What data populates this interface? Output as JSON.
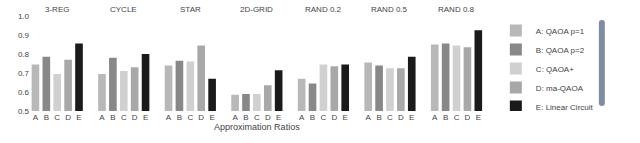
{
  "chart_data": [
    {
      "type": "bar",
      "title": "3-REG",
      "categories": [
        "A",
        "B",
        "C",
        "D",
        "E"
      ],
      "series": [
        {
          "name": "A: QAOA p=1",
          "color": "#b8b8b8",
          "values": [
            0.745,
            null,
            null,
            null,
            null
          ]
        },
        {
          "name": "B: QAOA p=2",
          "color": "#888888",
          "values": [
            null,
            0.785,
            null,
            null,
            null
          ]
        },
        {
          "name": "C: QAOA+",
          "color": "#d0d0d0",
          "values": [
            null,
            null,
            0.695,
            null,
            null
          ]
        },
        {
          "name": "D: ma-QAOA",
          "color": "#a8a8a8",
          "values": [
            null,
            null,
            null,
            0.77,
            null
          ]
        },
        {
          "name": "E: Linear Circuit",
          "color": "#1a1a1a",
          "values": [
            null,
            null,
            null,
            null,
            0.855
          ]
        }
      ],
      "ylim": [
        0.5,
        1.0
      ],
      "yticks": [
        0.5,
        0.6,
        0.7,
        0.8,
        0.9,
        {
          "value": 1.0,
          "label": "1.0"
        }
      ],
      "grid": true,
      "legend": "right"
    },
    {
      "type": "bar",
      "title": "CYCLE",
      "categories": [
        "A",
        "B",
        "C",
        "D",
        "E"
      ],
      "series": [
        {
          "name": "A: QAOA p=1",
          "color": "#b8b8b8",
          "values": [
            0.695,
            null,
            null,
            null,
            null
          ]
        },
        {
          "name": "B: QAOA p=2",
          "color": "#888888",
          "values": [
            null,
            0.78,
            null,
            null,
            null
          ]
        },
        {
          "name": "C: QAOA+",
          "color": "#d0d0d0",
          "values": [
            null,
            null,
            0.71,
            null,
            null
          ]
        },
        {
          "name": "D: ma-QAOA",
          "color": "#a8a8a8",
          "values": [
            null,
            null,
            null,
            0.73,
            null
          ]
        },
        {
          "name": "E: Linear Circuit",
          "color": "#1a1a1a",
          "values": [
            null,
            null,
            null,
            null,
            0.8
          ]
        }
      ],
      "ylim": [
        0.5,
        1.0
      ],
      "yticks": [
        0.5,
        0.6,
        0.7,
        0.8,
        0.9,
        {
          "value": 1.0,
          "label": "1.0"
        }
      ],
      "grid": true,
      "tick_labels": "x"
    },
    {
      "type": "bar",
      "title": "STAR",
      "categories": [
        "A",
        "B",
        "C",
        "D",
        "E"
      ],
      "series": [
        {
          "name": "A: QAOA p=1",
          "color": "#b8b8b8",
          "values": [
            0.74,
            null,
            null,
            null,
            null
          ]
        },
        {
          "name": "B: QAOA p=2",
          "color": "#888888",
          "values": [
            null,
            0.765,
            null,
            null,
            null
          ]
        },
        {
          "name": "C: QAOA+",
          "color": "#d0d0d0",
          "values": [
            null,
            null,
            0.76,
            null,
            null
          ]
        },
        {
          "name": "D: ma-QAOA",
          "color": "#a8a8a8",
          "values": [
            null,
            null,
            null,
            0.845,
            null
          ]
        },
        {
          "name": "E: Linear Circuit",
          "color": "#1a1a1a",
          "values": [
            null,
            null,
            null,
            null,
            0.67
          ]
        }
      ],
      "ylim": [
        0.5,
        1.0
      ],
      "yticks": [
        0.5,
        0.6,
        0.7,
        0.8,
        0.9,
        {
          "value": 1.0,
          "label": "1.0"
        }
      ],
      "grid": true,
      "tick_labels": "x"
    },
    {
      "type": "bar",
      "title": "2D-GRID",
      "categories": [
        "A",
        "B",
        "C",
        "D",
        "E"
      ],
      "series": [
        {
          "name": "A: QAOA p=1",
          "color": "#b8b8b8",
          "values": [
            0.585,
            null,
            null,
            null,
            null
          ]
        },
        {
          "name": "B: QAOA p=2",
          "color": "#888888",
          "values": [
            null,
            0.59,
            null,
            null,
            null
          ]
        },
        {
          "name": "C: QAOA+",
          "color": "#d0d0d0",
          "values": [
            null,
            null,
            0.59,
            null,
            null
          ]
        },
        {
          "name": "D: ma-QAOA",
          "color": "#a8a8a8",
          "values": [
            null,
            null,
            null,
            0.635,
            null
          ]
        },
        {
          "name": "E: Linear Circuit",
          "color": "#1a1a1a",
          "values": [
            null,
            null,
            null,
            null,
            0.715
          ]
        }
      ],
      "ylim": [
        0.5,
        1.0
      ],
      "yticks": [
        0.5,
        0.6,
        0.7,
        0.8,
        0.9,
        {
          "value": 1.0,
          "label": "1.0"
        }
      ],
      "grid": true,
      "tick_labels": "x",
      "xlabel": "Approximation Ratios"
    },
    {
      "type": "bar",
      "title": "RAND 0.2",
      "categories": [
        "A",
        "B",
        "C",
        "D",
        "E"
      ],
      "series": [
        {
          "name": "A: QAOA p=1",
          "color": "#b8b8b8",
          "values": [
            0.67,
            null,
            null,
            null,
            null
          ]
        },
        {
          "name": "B: QAOA p=2",
          "color": "#888888",
          "values": [
            null,
            0.645,
            null,
            null,
            null
          ]
        },
        {
          "name": "C: QAOA+",
          "color": "#d0d0d0",
          "values": [
            null,
            null,
            0.745,
            null,
            null
          ]
        },
        {
          "name": "D: ma-QAOA",
          "color": "#a8a8a8",
          "values": [
            null,
            null,
            null,
            0.735,
            null
          ]
        },
        {
          "name": "E: Linear Circuit",
          "color": "#1a1a1a",
          "values": [
            null,
            null,
            null,
            null,
            0.745
          ]
        }
      ],
      "ylim": [
        0.5,
        1.0
      ],
      "yticks": [
        0.5,
        0.6,
        0.7,
        0.8,
        0.9,
        {
          "value": 1.0,
          "label": "1.0"
        }
      ],
      "grid": true,
      "tick_labels": "x"
    },
    {
      "type": "bar",
      "title": "RAND 0.5",
      "categories": [
        "A",
        "B",
        "C",
        "D",
        "E"
      ],
      "series": [
        {
          "name": "A: QAOA p=1",
          "color": "#b8b8b8",
          "values": [
            0.755,
            null,
            null,
            null,
            null
          ]
        },
        {
          "name": "B: QAOA p=2",
          "color": "#888888",
          "values": [
            null,
            0.74,
            null,
            null,
            null
          ]
        },
        {
          "name": "C: QAOA+",
          "color": "#d0d0d0",
          "values": [
            null,
            null,
            0.725,
            null,
            null
          ]
        },
        {
          "name": "D: ma-QAOA",
          "color": "#a8a8a8",
          "values": [
            null,
            null,
            null,
            0.725,
            null
          ]
        },
        {
          "name": "E: Linear Circuit",
          "color": "#1a1a1a",
          "values": [
            null,
            null,
            null,
            null,
            0.785
          ]
        }
      ],
      "ylim": [
        0.5,
        1.0
      ],
      "yticks": [
        0.5,
        0.6,
        0.7,
        0.8,
        0.9,
        {
          "value": 1.0,
          "label": "1.0"
        }
      ],
      "grid": true,
      "tick_labels": "x"
    },
    {
      "type": "bar",
      "title": "RAND 0.8",
      "categories": [
        "A",
        "B",
        "C",
        "D",
        "E"
      ],
      "series": [
        {
          "name": "A: QAOA p=1",
          "color": "#b8b8b8",
          "values": [
            0.85,
            null,
            null,
            null,
            null
          ]
        },
        {
          "name": "B: QAOA p=2",
          "color": "#888888",
          "values": [
            null,
            0.855,
            null,
            null,
            null
          ]
        },
        {
          "name": "C: QAOA+",
          "color": "#d0d0d0",
          "values": [
            null,
            null,
            0.845,
            null,
            null
          ]
        },
        {
          "name": "D: ma-QAOA",
          "color": "#a8a8a8",
          "values": [
            null,
            null,
            null,
            0.835,
            null
          ]
        },
        {
          "name": "E: Linear Circuit",
          "color": "#1a1a1a",
          "values": [
            null,
            null,
            null,
            null,
            0.925
          ]
        }
      ],
      "ylim": [
        0.5,
        1.0
      ],
      "yticks": [
        0.5,
        0.6,
        0.7,
        0.8,
        0.9,
        {
          "value": 1.0,
          "label": "1.0"
        }
      ],
      "grid": true,
      "tick_labels": "x"
    }
  ]
}
